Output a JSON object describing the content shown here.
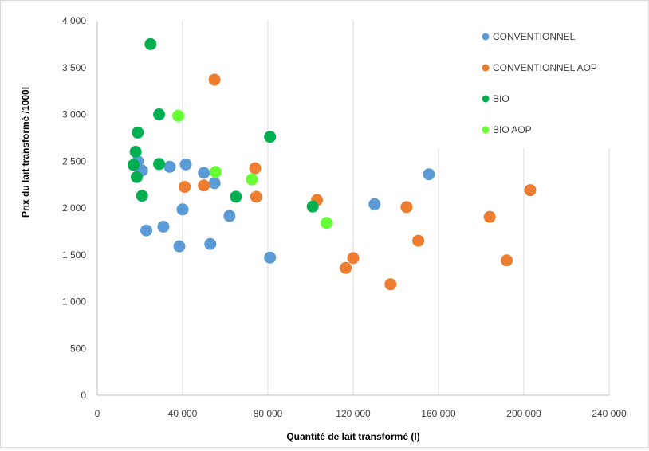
{
  "chart_data": {
    "type": "scatter",
    "xlabel": "Quantité de lait transformé (l)",
    "ylabel": "Prix du lait transformé /1000l",
    "xlim": [
      0,
      240000
    ],
    "ylim": [
      0,
      4000
    ],
    "x_ticks": [
      "0",
      "40 000",
      "80 000",
      "120 000",
      "160 000",
      "200 000",
      "240 000"
    ],
    "y_ticks": [
      "0",
      "500",
      "1 000",
      "1 500",
      "2 000",
      "2 500",
      "3 000",
      "3 500",
      "4 000"
    ],
    "grid": "vertical",
    "legend_position": "top-right",
    "series": [
      {
        "name": "CONVENTIONNEL",
        "color": "#5b9bd5",
        "points": [
          [
            19000,
            2500
          ],
          [
            21000,
            2400
          ],
          [
            23000,
            1760
          ],
          [
            31000,
            1800
          ],
          [
            34000,
            2440
          ],
          [
            38500,
            1590
          ],
          [
            40000,
            1985
          ],
          [
            41500,
            2465
          ],
          [
            50000,
            2375
          ],
          [
            53000,
            1615
          ],
          [
            55000,
            2265
          ],
          [
            62000,
            1915
          ],
          [
            81000,
            1470
          ],
          [
            130000,
            2040
          ],
          [
            155500,
            2360
          ]
        ]
      },
      {
        "name": "CONVENTIONNEL AOP",
        "color": "#ed7d31",
        "points": [
          [
            41000,
            2225
          ],
          [
            50000,
            2240
          ],
          [
            55000,
            3370
          ],
          [
            74000,
            2425
          ],
          [
            74500,
            2120
          ],
          [
            103000,
            2085
          ],
          [
            116500,
            1360
          ],
          [
            120000,
            1465
          ],
          [
            137500,
            1185
          ],
          [
            145000,
            2010
          ],
          [
            150500,
            1650
          ],
          [
            184000,
            1905
          ],
          [
            192000,
            1440
          ],
          [
            203000,
            2190
          ]
        ]
      },
      {
        "name": "BIO",
        "color": "#00b050",
        "points": [
          [
            17000,
            2460
          ],
          [
            18000,
            2600
          ],
          [
            18500,
            2330
          ],
          [
            19000,
            2805
          ],
          [
            21000,
            2130
          ],
          [
            25000,
            3750
          ],
          [
            29000,
            3000
          ],
          [
            29000,
            2470
          ],
          [
            65000,
            2120
          ],
          [
            81000,
            2760
          ],
          [
            101000,
            2015
          ]
        ]
      },
      {
        "name": "BIO AOP",
        "color": "#66ff33",
        "points": [
          [
            38000,
            2985
          ],
          [
            55500,
            2385
          ],
          [
            72500,
            2305
          ],
          [
            107500,
            1840
          ]
        ]
      }
    ]
  }
}
